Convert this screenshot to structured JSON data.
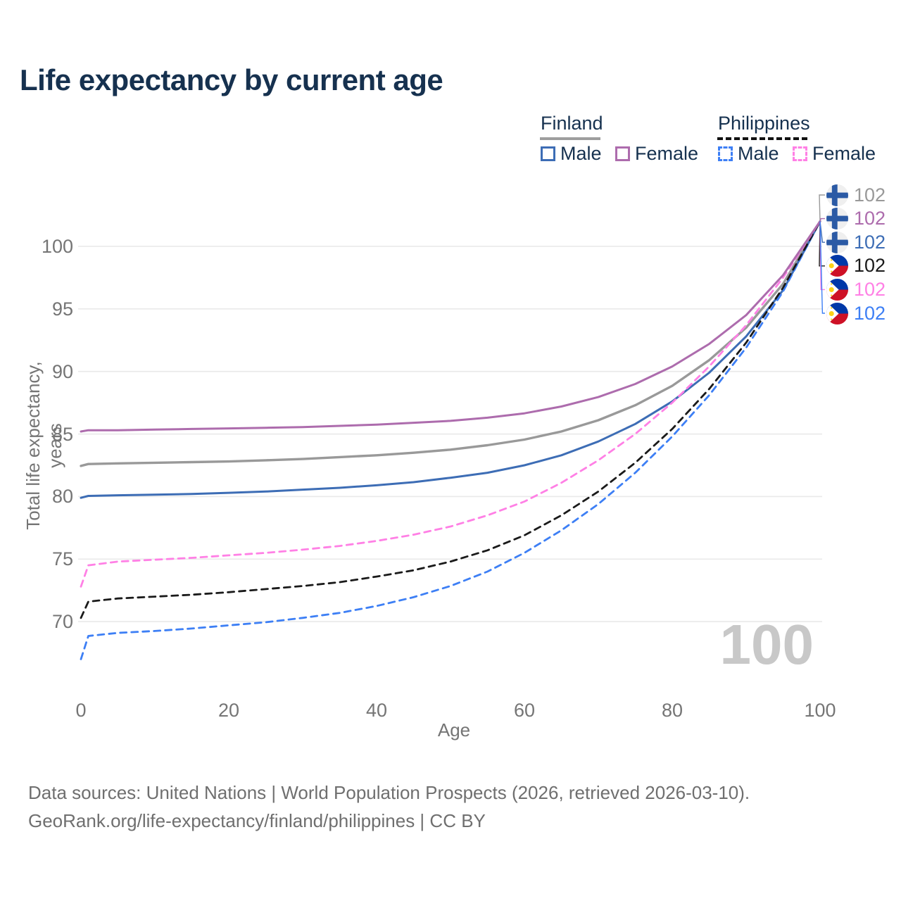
{
  "title": "Life expectancy by current age",
  "legend": {
    "groups": [
      {
        "name": "Finland",
        "line_style": "solid",
        "underline_color": "#9e9e9e",
        "items": [
          {
            "label": "Male",
            "color": "#3d6db5",
            "dash": false
          },
          {
            "label": "Female",
            "color": "#ad6cad",
            "dash": false
          }
        ]
      },
      {
        "name": "Philippines",
        "line_style": "dashed",
        "underline_color": "#111111",
        "items": [
          {
            "label": "Male",
            "color": "#3d7ff5",
            "dash": true
          },
          {
            "label": "Female",
            "color": "#ff80e5",
            "dash": true
          }
        ]
      }
    ]
  },
  "watermark": "100",
  "chart_data": {
    "type": "line",
    "title": "Life expectancy by current age",
    "xlabel": "Age",
    "ylabel": "Total life expectancy, years",
    "xlim": [
      0,
      100
    ],
    "ylim": [
      66,
      103
    ],
    "x_ticks": [
      0,
      20,
      40,
      60,
      80,
      100
    ],
    "y_ticks": [
      70,
      75,
      80,
      85,
      90,
      95,
      100
    ],
    "grid": "horizontal",
    "legend_position": "top-right",
    "ages": [
      0,
      1,
      5,
      10,
      15,
      20,
      25,
      30,
      35,
      40,
      45,
      50,
      55,
      60,
      65,
      70,
      75,
      80,
      85,
      90,
      95,
      100
    ],
    "series": [
      {
        "name": "Finland (both sexes)",
        "country": "Finland",
        "sex": "total",
        "color": "#999999",
        "dash": false,
        "width": 3.4,
        "values": [
          82.45,
          82.6,
          82.65,
          82.7,
          82.75,
          82.8,
          82.9,
          83.0,
          83.15,
          83.3,
          83.5,
          83.75,
          84.1,
          84.55,
          85.2,
          86.1,
          87.3,
          88.85,
          90.9,
          93.5,
          97.0,
          102
        ]
      },
      {
        "name": "Finland Female",
        "country": "Finland",
        "sex": "female",
        "color": "#ad6cad",
        "dash": false,
        "width": 3,
        "values": [
          85.2,
          85.3,
          85.3,
          85.35,
          85.4,
          85.45,
          85.5,
          85.55,
          85.65,
          85.75,
          85.9,
          86.05,
          86.3,
          86.65,
          87.2,
          87.95,
          89.0,
          90.4,
          92.2,
          94.5,
          97.7,
          102
        ]
      },
      {
        "name": "Finland Male",
        "country": "Finland",
        "sex": "male",
        "color": "#3d6db5",
        "dash": false,
        "width": 3,
        "values": [
          79.9,
          80.05,
          80.1,
          80.15,
          80.2,
          80.3,
          80.4,
          80.55,
          80.7,
          80.9,
          81.15,
          81.5,
          81.9,
          82.5,
          83.3,
          84.4,
          85.8,
          87.6,
          89.9,
          92.8,
          96.5,
          102
        ]
      },
      {
        "name": "Philippines (both sexes)",
        "country": "Philippines",
        "sex": "total",
        "color": "#1a1a1a",
        "dash": true,
        "width": 2.8,
        "values": [
          70.3,
          71.6,
          71.85,
          72.0,
          72.15,
          72.35,
          72.6,
          72.85,
          73.15,
          73.6,
          74.1,
          74.8,
          75.7,
          76.9,
          78.5,
          80.4,
          82.7,
          85.4,
          88.6,
          92.3,
          96.7,
          102
        ]
      },
      {
        "name": "Philippines Female",
        "country": "Philippines",
        "sex": "female",
        "color": "#ff80e5",
        "dash": true,
        "width": 2.8,
        "values": [
          72.8,
          74.5,
          74.8,
          74.95,
          75.1,
          75.3,
          75.5,
          75.75,
          76.05,
          76.45,
          76.95,
          77.6,
          78.5,
          79.6,
          81.1,
          82.9,
          85.0,
          87.5,
          90.4,
          93.7,
          97.5,
          102
        ]
      },
      {
        "name": "Philippines Male",
        "country": "Philippines",
        "sex": "male",
        "color": "#3d7ff5",
        "dash": true,
        "width": 2.8,
        "values": [
          67.0,
          68.85,
          69.1,
          69.25,
          69.45,
          69.7,
          69.95,
          70.3,
          70.7,
          71.25,
          71.95,
          72.85,
          74.0,
          75.5,
          77.3,
          79.4,
          81.9,
          84.8,
          88.1,
          91.9,
          96.4,
          102
        ]
      }
    ]
  },
  "end_labels": [
    {
      "flag": "finland",
      "value": "102",
      "color": "#999999",
      "series": "Finland (both sexes)"
    },
    {
      "flag": "finland",
      "value": "102",
      "color": "#ad6cad",
      "series": "Finland Female"
    },
    {
      "flag": "finland",
      "value": "102",
      "color": "#3d6db5",
      "series": "Finland Male"
    },
    {
      "flag": "philippines",
      "value": "102",
      "color": "#1a1a1a",
      "series": "Philippines (both sexes)"
    },
    {
      "flag": "philippines",
      "value": "102",
      "color": "#ff80e5",
      "series": "Philippines Female"
    },
    {
      "flag": "philippines",
      "value": "102",
      "color": "#3d7ff5",
      "series": "Philippines Male"
    }
  ],
  "axes": {
    "x_title": "Age",
    "y_title": "Total life expectancy, years"
  },
  "footer": {
    "line1": "Data sources: United Nations | World Population Prospects (2026, retrieved 2026-03-10).",
    "line2": "GeoRank.org/life-expectancy/finland/philippines | CC BY"
  },
  "colors": {
    "title_text": "#16314f",
    "axis_text": "#757575",
    "gridline": "#e9e9e9",
    "watermark": "#c8c8c8",
    "footer_text": "#6f6f6f",
    "finland_flag_blue": "#2b5aa5",
    "finland_flag_bg": "#efefef",
    "ph_flag_blue": "#0038a8",
    "ph_flag_red": "#ce1126",
    "ph_flag_yellow": "#fcd116"
  }
}
